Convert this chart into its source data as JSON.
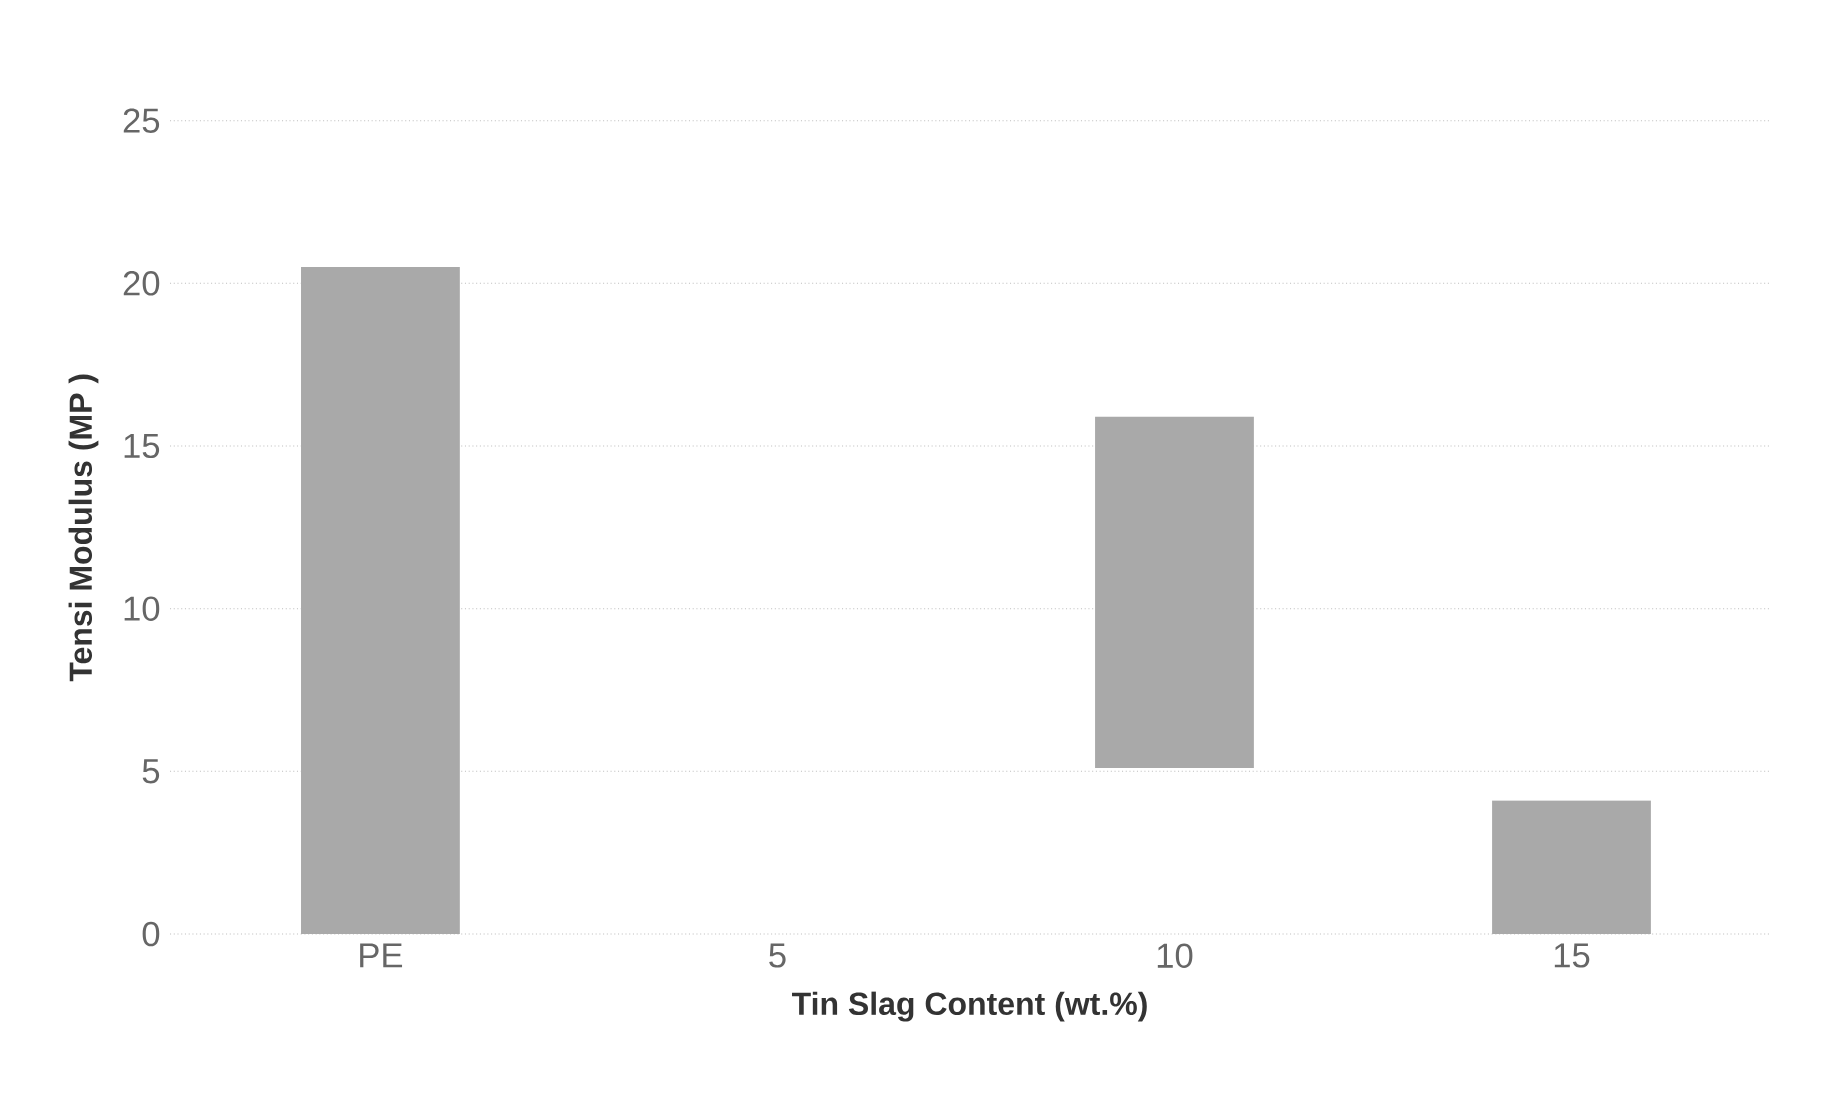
{
  "chart_data": {
    "type": "bar",
    "xlabel": "Tin Slag Content (wt.%)",
    "ylabel": "Tensi    Modulus (MP )",
    "categories": [
      "PE",
      "5",
      "10",
      "15"
    ],
    "values": [
      20.5,
      null,
      10.8,
      4.1
    ],
    "base": [
      0,
      null,
      5.1,
      0
    ],
    "color": "#a9a9a9",
    "ylim": [
      0,
      25
    ],
    "yticks": [
      0,
      5,
      10,
      15,
      20,
      25
    ],
    "grid": "y"
  }
}
